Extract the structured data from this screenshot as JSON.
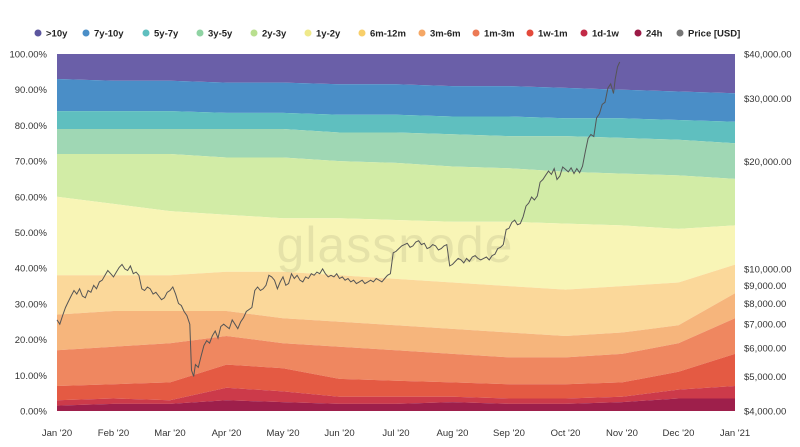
{
  "watermark": "glassnode",
  "chart_data": {
    "type": "area",
    "stacked": true,
    "normalized": true,
    "x": [
      "Jan '20",
      "Feb '20",
      "Mar '20",
      "Apr '20",
      "May '20",
      "Jun '20",
      "Jul '20",
      "Aug '20",
      "Sep '20",
      "Oct '20",
      "Nov '20",
      "Dec '20",
      "Jan '21"
    ],
    "x_tick_labels": [
      "Jan '20",
      "Feb '20",
      "Mar '20",
      "Apr '20",
      "May '20",
      "Jun '20",
      "Jul '20",
      "Aug '20",
      "Sep '20",
      "Oct '20",
      "Nov '20",
      "Dec '20",
      "Jan '21"
    ],
    "ylim": [
      0,
      100
    ],
    "y_tick_labels": [
      "0.00%",
      "10.00%",
      "20.00%",
      "30.00%",
      "40.00%",
      "50.00%",
      "60.00%",
      "70.00%",
      "80.00%",
      "90.00%",
      "100.00%"
    ],
    "y2_scale": "log",
    "y2lim": [
      4000,
      40000
    ],
    "y2_tick_values": [
      4000,
      5000,
      6000,
      7000,
      8000,
      9000,
      10000,
      20000,
      30000,
      40000
    ],
    "y2_tick_labels": [
      "$4,000.00",
      "$5,000.00",
      "$6,000.00",
      "$7,000.00",
      "$8,000.00",
      "$9,000.00",
      "$10,000.00",
      "$20,000.00",
      "$30,000.00",
      "$40,000.00"
    ],
    "legend_position": "top",
    "series": [
      {
        "name": "24h",
        "color": "#9e1f4b",
        "cumulative_top": [
          1.5,
          2,
          2,
          3,
          2.5,
          2,
          2,
          2.5,
          2,
          2,
          2.5,
          3.5,
          3.5
        ]
      },
      {
        "name": "1d-1w",
        "color": "#cc3a4a",
        "cumulative_top": [
          3,
          3.5,
          3,
          6.5,
          5.5,
          4,
          4,
          4,
          3.5,
          3.5,
          4,
          6,
          7
        ]
      },
      {
        "name": "1w-1m",
        "color": "#e45a43",
        "cumulative_top": [
          7,
          7.5,
          8,
          13,
          12,
          9,
          8.5,
          8,
          7.5,
          7.5,
          8,
          11,
          16
        ]
      },
      {
        "name": "1m-3m",
        "color": "#ef8760",
        "cumulative_top": [
          17,
          18,
          19,
          21,
          19,
          18,
          17,
          16,
          15,
          15,
          16,
          19,
          26
        ]
      },
      {
        "name": "3m-6m",
        "color": "#f6b57c",
        "cumulative_top": [
          27,
          28,
          28,
          28,
          26,
          25,
          24,
          23,
          22,
          21,
          22,
          24,
          33
        ]
      },
      {
        "name": "6m-12m",
        "color": "#fbd89a",
        "cumulative_top": [
          38,
          38,
          38,
          39,
          39,
          38,
          37,
          36,
          35,
          34,
          35,
          36,
          41
        ]
      },
      {
        "name": "1y-2y",
        "color": "#f8f5b6",
        "cumulative_top": [
          60,
          58,
          56,
          55,
          54,
          54,
          53.5,
          53,
          53,
          52.5,
          52,
          51,
          52
        ]
      },
      {
        "name": "2y-3y",
        "color": "#d2eca6",
        "cumulative_top": [
          72,
          72,
          72,
          71,
          71,
          70,
          69.5,
          68.5,
          68,
          67,
          66.5,
          66,
          65
        ]
      },
      {
        "name": "3y-5y",
        "color": "#9fd7b4",
        "cumulative_top": [
          79,
          79,
          79,
          79,
          79,
          78,
          78,
          77.5,
          77,
          77,
          76.5,
          76,
          75
        ]
      },
      {
        "name": "5y-7y",
        "color": "#5fbfbf",
        "cumulative_top": [
          84,
          84,
          84,
          83.5,
          83.5,
          83,
          83,
          82.5,
          82.5,
          82,
          82,
          81.5,
          81
        ]
      },
      {
        "name": "7y-10y",
        "color": "#4a8ec7",
        "cumulative_top": [
          93,
          92.5,
          92.5,
          92,
          92,
          91.5,
          91.5,
          91,
          91,
          90.5,
          90,
          89.5,
          89
        ]
      },
      {
        "name": ">10y",
        "color": "#6a5fa8",
        "cumulative_top": [
          100,
          100,
          100,
          100,
          100,
          100,
          100,
          100,
          100,
          100,
          100,
          100,
          100
        ]
      }
    ],
    "price_series": {
      "name": "Price [USD]",
      "color": "#555555",
      "axis": "right",
      "points": [
        [
          0,
          7200
        ],
        [
          0.05,
          7000
        ],
        [
          0.1,
          7400
        ],
        [
          0.15,
          7800
        ],
        [
          0.2,
          8100
        ],
        [
          0.25,
          8400
        ],
        [
          0.3,
          8700
        ],
        [
          0.35,
          8500
        ],
        [
          0.4,
          8800
        ],
        [
          0.45,
          8400
        ],
        [
          0.5,
          8300
        ],
        [
          0.55,
          8700
        ],
        [
          0.6,
          8600
        ],
        [
          0.65,
          9000
        ],
        [
          0.7,
          8800
        ],
        [
          0.75,
          9200
        ],
        [
          0.8,
          9300
        ],
        [
          0.85,
          9600
        ],
        [
          0.9,
          9900
        ],
        [
          0.95,
          9700
        ],
        [
          1.0,
          9500
        ],
        [
          1.05,
          9800
        ],
        [
          1.1,
          10100
        ],
        [
          1.15,
          10300
        ],
        [
          1.2,
          10000
        ],
        [
          1.25,
          9900
        ],
        [
          1.3,
          10200
        ],
        [
          1.35,
          9700
        ],
        [
          1.4,
          9800
        ],
        [
          1.45,
          9600
        ],
        [
          1.5,
          8800
        ],
        [
          1.55,
          8700
        ],
        [
          1.6,
          8900
        ],
        [
          1.65,
          8800
        ],
        [
          1.7,
          8500
        ],
        [
          1.75,
          8600
        ],
        [
          1.8,
          8400
        ],
        [
          1.85,
          8200
        ],
        [
          1.9,
          8300
        ],
        [
          1.95,
          8600
        ],
        [
          2.0,
          8700
        ],
        [
          2.05,
          8900
        ],
        [
          2.1,
          8500
        ],
        [
          2.15,
          8000
        ],
        [
          2.2,
          7900
        ],
        [
          2.25,
          7600
        ],
        [
          2.3,
          7400
        ],
        [
          2.35,
          7000
        ],
        [
          2.38,
          5200
        ],
        [
          2.42,
          5000
        ],
        [
          2.45,
          5400
        ],
        [
          2.5,
          5300
        ],
        [
          2.55,
          5700
        ],
        [
          2.6,
          6100
        ],
        [
          2.65,
          6300
        ],
        [
          2.7,
          6200
        ],
        [
          2.75,
          6500
        ],
        [
          2.8,
          6700
        ],
        [
          2.85,
          6400
        ],
        [
          2.9,
          6900
        ],
        [
          2.95,
          7000
        ],
        [
          3.0,
          6900
        ],
        [
          3.05,
          6800
        ],
        [
          3.1,
          7200
        ],
        [
          3.15,
          7000
        ],
        [
          3.2,
          6800
        ],
        [
          3.25,
          7100
        ],
        [
          3.3,
          7300
        ],
        [
          3.35,
          7600
        ],
        [
          3.4,
          7700
        ],
        [
          3.45,
          7800
        ],
        [
          3.5,
          8700
        ],
        [
          3.55,
          8900
        ],
        [
          3.6,
          8700
        ],
        [
          3.65,
          8800
        ],
        [
          3.7,
          9000
        ],
        [
          3.75,
          9600
        ],
        [
          3.8,
          9500
        ],
        [
          3.85,
          9300
        ],
        [
          3.9,
          8800
        ],
        [
          3.95,
          9200
        ],
        [
          4.0,
          9500
        ],
        [
          4.05,
          9000
        ],
        [
          4.1,
          9100
        ],
        [
          4.15,
          9700
        ],
        [
          4.2,
          9400
        ],
        [
          4.25,
          9600
        ],
        [
          4.3,
          9300
        ],
        [
          4.35,
          9200
        ],
        [
          4.4,
          9500
        ],
        [
          4.45,
          9400
        ],
        [
          4.5,
          9700
        ],
        [
          4.55,
          9600
        ],
        [
          4.6,
          9800
        ],
        [
          4.65,
          9700
        ],
        [
          4.7,
          10000
        ],
        [
          4.75,
          9700
        ],
        [
          4.8,
          9500
        ],
        [
          4.85,
          9600
        ],
        [
          4.9,
          9500
        ],
        [
          4.95,
          9700
        ],
        [
          5.0,
          9400
        ],
        [
          5.05,
          9500
        ],
        [
          5.1,
          9300
        ],
        [
          5.15,
          9400
        ],
        [
          5.2,
          9200
        ],
        [
          5.25,
          9300
        ],
        [
          5.3,
          9100
        ],
        [
          5.35,
          9200
        ],
        [
          5.4,
          9300
        ],
        [
          5.45,
          9100
        ],
        [
          5.5,
          9200
        ],
        [
          5.55,
          9300
        ],
        [
          5.6,
          9200
        ],
        [
          5.65,
          9400
        ],
        [
          5.7,
          9300
        ],
        [
          5.75,
          9200
        ],
        [
          5.8,
          9400
        ],
        [
          5.85,
          9600
        ],
        [
          5.9,
          9700
        ],
        [
          5.95,
          11100
        ],
        [
          6.0,
          11200
        ],
        [
          6.05,
          11400
        ],
        [
          6.1,
          11600
        ],
        [
          6.15,
          11700
        ],
        [
          6.2,
          11800
        ],
        [
          6.25,
          11500
        ],
        [
          6.3,
          11600
        ],
        [
          6.35,
          11900
        ],
        [
          6.4,
          12000
        ],
        [
          6.45,
          11700
        ],
        [
          6.5,
          11800
        ],
        [
          6.55,
          11400
        ],
        [
          6.6,
          11500
        ],
        [
          6.65,
          11700
        ],
        [
          6.7,
          11600
        ],
        [
          6.75,
          11300
        ],
        [
          6.8,
          11400
        ],
        [
          6.85,
          11600
        ],
        [
          6.9,
          11700
        ],
        [
          6.95,
          10200
        ],
        [
          7.0,
          10300
        ],
        [
          7.05,
          10500
        ],
        [
          7.1,
          10700
        ],
        [
          7.15,
          10600
        ],
        [
          7.2,
          10400
        ],
        [
          7.25,
          10700
        ],
        [
          7.3,
          10500
        ],
        [
          7.35,
          10800
        ],
        [
          7.4,
          10900
        ],
        [
          7.45,
          10700
        ],
        [
          7.5,
          10600
        ],
        [
          7.55,
          10700
        ],
        [
          7.6,
          10800
        ],
        [
          7.65,
          10600
        ],
        [
          7.7,
          10900
        ],
        [
          7.75,
          11000
        ],
        [
          7.8,
          11400
        ],
        [
          7.85,
          11500
        ],
        [
          7.9,
          11700
        ],
        [
          7.95,
          12900
        ],
        [
          8.0,
          13000
        ],
        [
          8.05,
          13500
        ],
        [
          8.1,
          13700
        ],
        [
          8.15,
          13300
        ],
        [
          8.2,
          13400
        ],
        [
          8.25,
          14000
        ],
        [
          8.3,
          15000
        ],
        [
          8.35,
          15300
        ],
        [
          8.4,
          15900
        ],
        [
          8.45,
          15600
        ],
        [
          8.5,
          16000
        ],
        [
          8.55,
          17500
        ],
        [
          8.6,
          17800
        ],
        [
          8.65,
          18300
        ],
        [
          8.7,
          18800
        ],
        [
          8.75,
          18400
        ],
        [
          8.8,
          19100
        ],
        [
          8.85,
          17800
        ],
        [
          8.9,
          18200
        ],
        [
          8.95,
          19300
        ],
        [
          9.0,
          19000
        ],
        [
          9.05,
          18700
        ],
        [
          9.1,
          19200
        ],
        [
          9.15,
          18500
        ],
        [
          9.2,
          19100
        ],
        [
          9.25,
          18600
        ],
        [
          9.3,
          19400
        ],
        [
          9.35,
          21300
        ],
        [
          9.4,
          23200
        ],
        [
          9.45,
          23800
        ],
        [
          9.5,
          23500
        ],
        [
          9.55,
          26500
        ],
        [
          9.6,
          27200
        ],
        [
          9.65,
          28900
        ],
        [
          9.7,
          29300
        ],
        [
          9.75,
          32100
        ],
        [
          9.8,
          33000
        ],
        [
          9.85,
          31000
        ],
        [
          9.88,
          34000
        ],
        [
          9.92,
          36800
        ],
        [
          9.96,
          38000
        ]
      ]
    },
    "legend": [
      {
        "label": ">10y",
        "color": "#5c569e"
      },
      {
        "label": "7y-10y",
        "color": "#4a8ec7"
      },
      {
        "label": "5y-7y",
        "color": "#5fbfbf"
      },
      {
        "label": "3y-5y",
        "color": "#8fd3a3"
      },
      {
        "label": "2y-3y",
        "color": "#b9df8f"
      },
      {
        "label": "1y-2y",
        "color": "#efe98a"
      },
      {
        "label": "6m-12m",
        "color": "#f8cf6a"
      },
      {
        "label": "3m-6m",
        "color": "#f5a765"
      },
      {
        "label": "1m-3m",
        "color": "#ec7a55"
      },
      {
        "label": "1w-1m",
        "color": "#e34a3b"
      },
      {
        "label": "1d-1w",
        "color": "#c22a46"
      },
      {
        "label": "24h",
        "color": "#9b1a46"
      },
      {
        "label": "Price [USD]",
        "color": "#777777"
      }
    ]
  }
}
